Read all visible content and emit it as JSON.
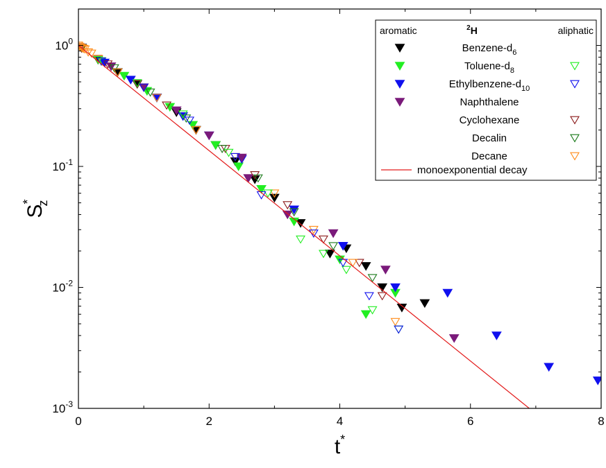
{
  "chart_data": {
    "type": "scatter",
    "xlabel": "t",
    "xlabel_sup": "*",
    "ylabel": "S",
    "ylabel_sup": "*",
    "ylabel_sub": "z",
    "xlim": [
      0,
      8
    ],
    "ylim": [
      0.001,
      2
    ],
    "yscale": "log",
    "x_ticks": [
      0,
      2,
      4,
      6,
      8
    ],
    "y_ticks": [
      {
        "value": 1,
        "base": "10",
        "exp": "0"
      },
      {
        "value": 0.1,
        "base": "10",
        "exp": "-1"
      },
      {
        "value": 0.01,
        "base": "10",
        "exp": "-2"
      },
      {
        "value": 0.001,
        "base": "10",
        "exp": "-3"
      }
    ],
    "grid": false,
    "legend": {
      "position": "top-right",
      "header_left": "aromatic",
      "header_center_sup": "2",
      "header_center": "H",
      "header_right": "aliphatic"
    },
    "series": [
      {
        "name": "Benzene-d",
        "name_sub": "6",
        "marker": "filled",
        "aromatic": true,
        "aliphatic": false,
        "color": "#000000",
        "points": [
          [
            0.05,
            0.95
          ],
          [
            0.3,
            0.76
          ],
          [
            0.6,
            0.6
          ],
          [
            0.9,
            0.48
          ],
          [
            1.2,
            0.37
          ],
          [
            1.5,
            0.28
          ],
          [
            1.8,
            0.2
          ],
          [
            2.1,
            0.15
          ],
          [
            2.4,
            0.11
          ],
          [
            2.7,
            0.078
          ],
          [
            3.0,
            0.055
          ],
          [
            3.4,
            0.034
          ],
          [
            3.85,
            0.019
          ],
          [
            4.1,
            0.021
          ],
          [
            4.4,
            0.015
          ],
          [
            4.65,
            0.01
          ],
          [
            4.95,
            0.0068
          ],
          [
            5.3,
            0.0074
          ]
        ]
      },
      {
        "name": "Toluene-d",
        "name_sub": "8",
        "marker": "filled",
        "aromatic": true,
        "aliphatic": true,
        "color": "#22ee22",
        "points": [
          [
            0.05,
            0.95
          ],
          [
            0.35,
            0.74
          ],
          [
            0.7,
            0.56
          ],
          [
            1.05,
            0.42
          ],
          [
            1.4,
            0.31
          ],
          [
            1.75,
            0.22
          ],
          [
            2.1,
            0.15
          ],
          [
            2.45,
            0.1
          ],
          [
            2.8,
            0.065
          ],
          [
            3.3,
            0.035
          ],
          [
            4.0,
            0.017
          ],
          [
            4.4,
            0.006
          ],
          [
            4.85,
            0.009
          ]
        ]
      },
      {
        "name": "Ethylbenzene-d",
        "name_sub": "10",
        "marker": "filled",
        "aromatic": true,
        "aliphatic": true,
        "color": "#1010ee",
        "points": [
          [
            0.05,
            0.96
          ],
          [
            0.4,
            0.72
          ],
          [
            0.8,
            0.52
          ],
          [
            1.2,
            0.37
          ],
          [
            1.6,
            0.26
          ],
          [
            2.0,
            0.18
          ],
          [
            2.5,
            0.115
          ],
          [
            3.3,
            0.044
          ],
          [
            4.05,
            0.022
          ],
          [
            4.85,
            0.01
          ],
          [
            5.65,
            0.009
          ],
          [
            6.4,
            0.004
          ],
          [
            7.2,
            0.0022
          ],
          [
            7.95,
            0.0017
          ]
        ]
      },
      {
        "name": "Naphthalene",
        "name_sub": "",
        "marker": "filled",
        "aromatic": true,
        "aliphatic": false,
        "color": "#7a1a7a",
        "points": [
          [
            0.05,
            0.95
          ],
          [
            0.5,
            0.67
          ],
          [
            1.0,
            0.45
          ],
          [
            1.5,
            0.29
          ],
          [
            2.0,
            0.18
          ],
          [
            2.5,
            0.118
          ],
          [
            2.6,
            0.08
          ],
          [
            3.2,
            0.04
          ],
          [
            3.9,
            0.028
          ],
          [
            4.7,
            0.014
          ],
          [
            5.75,
            0.0038
          ]
        ]
      },
      {
        "name": "Cyclohexane",
        "name_sub": "",
        "marker": "open",
        "aromatic": false,
        "aliphatic": true,
        "color": "#8b1a1a",
        "points": [
          [
            0.05,
            0.95
          ],
          [
            0.45,
            0.7
          ],
          [
            0.9,
            0.48
          ],
          [
            1.35,
            0.32
          ],
          [
            1.8,
            0.2
          ],
          [
            2.25,
            0.14
          ],
          [
            2.7,
            0.085
          ],
          [
            3.2,
            0.048
          ],
          [
            3.75,
            0.025
          ],
          [
            4.3,
            0.016
          ],
          [
            4.65,
            0.0085
          ]
        ]
      },
      {
        "name": "Decalin",
        "name_sub": "",
        "marker": "open",
        "aromatic": false,
        "aliphatic": true,
        "color": "#1a7a1a",
        "points": [
          [
            0.05,
            0.96
          ],
          [
            0.55,
            0.65
          ],
          [
            1.1,
            0.41
          ],
          [
            1.65,
            0.25
          ],
          [
            2.2,
            0.14
          ],
          [
            2.75,
            0.08
          ],
          [
            3.3,
            0.042
          ],
          [
            3.9,
            0.022
          ],
          [
            4.5,
            0.012
          ]
        ]
      },
      {
        "name": "Decane",
        "name_sub": "",
        "marker": "open",
        "aromatic": false,
        "aliphatic": true,
        "color": "#ff8c1a",
        "points": [
          [
            0.0,
            1.0
          ],
          [
            0.02,
            0.98
          ],
          [
            0.04,
            0.96
          ],
          [
            0.06,
            0.95
          ],
          [
            0.08,
            0.94
          ],
          [
            0.1,
            0.93
          ],
          [
            0.15,
            0.88
          ],
          [
            0.2,
            0.86
          ],
          [
            0.3,
            0.78
          ],
          [
            0.6,
            0.6
          ],
          [
            1.2,
            0.37
          ],
          [
            1.8,
            0.2
          ],
          [
            2.4,
            0.12
          ],
          [
            3.0,
            0.06
          ],
          [
            3.6,
            0.03
          ],
          [
            4.2,
            0.016
          ],
          [
            4.85,
            0.0052
          ]
        ]
      },
      {
        "name": "Toluene aliphatic",
        "legend": false,
        "marker": "open",
        "aromatic": false,
        "aliphatic": true,
        "color": "#22ee22",
        "points": [
          [
            0.3,
            0.76
          ],
          [
            0.9,
            0.49
          ],
          [
            1.6,
            0.27
          ],
          [
            2.3,
            0.13
          ],
          [
            2.9,
            0.06
          ],
          [
            3.4,
            0.025
          ],
          [
            3.75,
            0.019
          ],
          [
            4.1,
            0.014
          ],
          [
            4.5,
            0.0065
          ],
          [
            4.9,
            0.0045
          ]
        ]
      },
      {
        "name": "Ethylbenzene aliphatic",
        "legend": false,
        "marker": "open",
        "aromatic": false,
        "aliphatic": true,
        "color": "#1010ee",
        "points": [
          [
            0.35,
            0.74
          ],
          [
            1.0,
            0.45
          ],
          [
            1.7,
            0.24
          ],
          [
            2.4,
            0.12
          ],
          [
            2.8,
            0.058
          ],
          [
            3.6,
            0.028
          ],
          [
            4.05,
            0.016
          ],
          [
            4.45,
            0.0085
          ],
          [
            4.9,
            0.0045
          ]
        ]
      }
    ],
    "fit": {
      "name": "monoexponential decay",
      "color": "#e31a1a",
      "x": [
        0,
        6.9
      ],
      "y": [
        1,
        0.001
      ]
    }
  }
}
